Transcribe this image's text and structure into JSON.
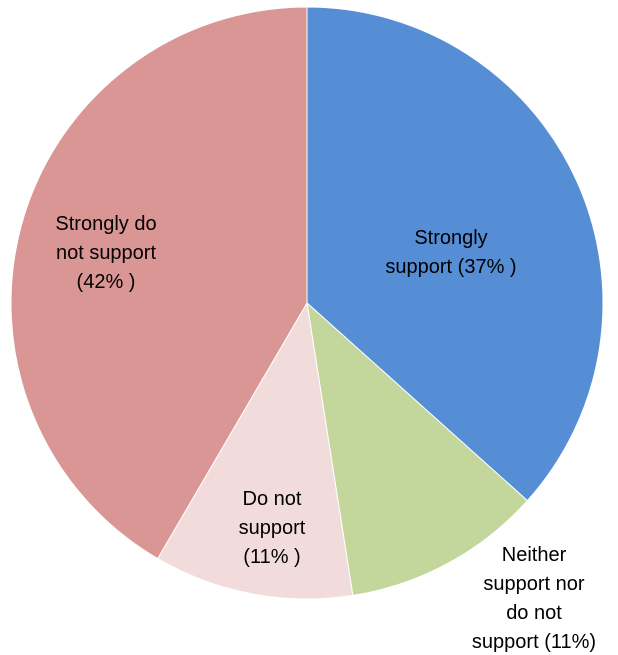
{
  "chart_data": {
    "type": "pie",
    "categories": [
      "Strongly support",
      "Neither support nor do not support",
      "Do not support",
      "Strongly do not support"
    ],
    "values": [
      37,
      11,
      11,
      42
    ],
    "colors": [
      "#558ED5",
      "#C3D69B",
      "#F2DCDB",
      "#D99694"
    ],
    "data_labels": [
      [
        "Strongly",
        "support (37% )"
      ],
      [
        "Neither",
        "support nor",
        "do not",
        "support (11%)"
      ],
      [
        "Do not",
        "support",
        "(11% )"
      ],
      [
        "Strongly do",
        "not support",
        "(42% )"
      ]
    ],
    "start_angle_deg": 0,
    "direction": "clockwise",
    "legend": "none"
  }
}
